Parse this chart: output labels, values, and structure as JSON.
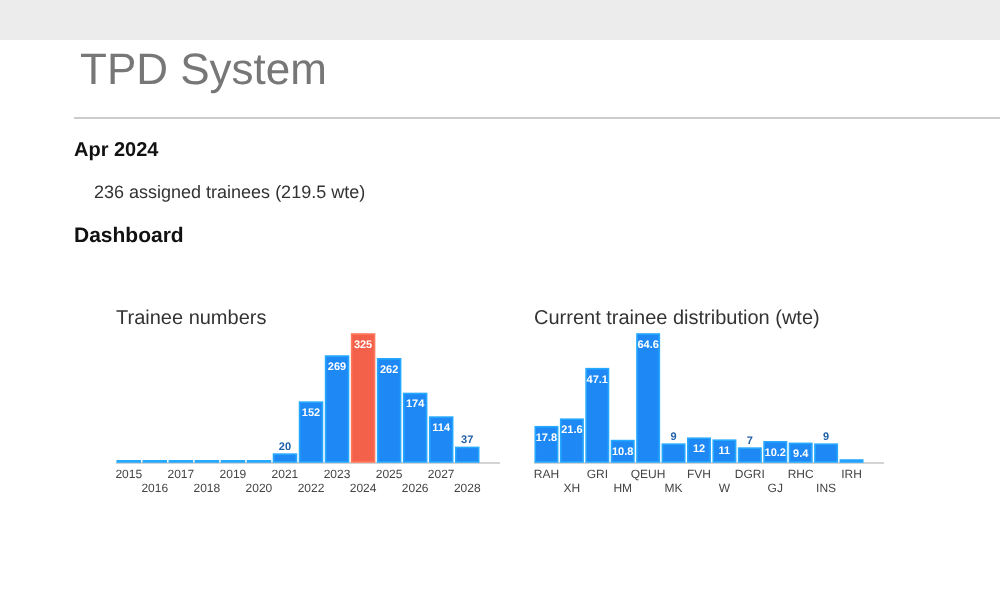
{
  "chart_data": [
    {
      "type": "other",
      "title": "TPD System",
      "subtitle": "Apr 2024",
      "annotations": [
        "236 assigned trainees (219.5 wte)",
        "Dashboard"
      ]
    },
    {
      "type": "bar",
      "title": "Trainee numbers",
      "categories": [
        "2015",
        "2016",
        "2017",
        "2018",
        "2019",
        "2020",
        "2021",
        "2022",
        "2023",
        "2024",
        "2025",
        "2026",
        "2027",
        "2028"
      ],
      "values": [
        3,
        3,
        3,
        3,
        3,
        3,
        20,
        152,
        269,
        325,
        262,
        174,
        114,
        37
      ],
      "value_labels": [
        null,
        null,
        null,
        null,
        null,
        null,
        "20",
        "152",
        "269",
        "325",
        "262",
        "174",
        "114",
        "37"
      ],
      "colors": [
        "#1e88f5",
        "#1e88f5",
        "#1e88f5",
        "#1e88f5",
        "#1e88f5",
        "#1e88f5",
        "#1e88f5",
        "#1e88f5",
        "#1e88f5",
        "#f4614a",
        "#1e88f5",
        "#1e88f5",
        "#1e88f5",
        "#1e88f5"
      ]
    },
    {
      "type": "bar",
      "title": "Current trainee distribution (wte)",
      "categories": [
        "RAH",
        "XH",
        "GRI",
        "HM",
        "QEUH",
        "MK",
        "FVH",
        "W",
        "DGRI",
        "GJ",
        "RHC",
        "INS",
        "IRH"
      ],
      "values": [
        17.8,
        21.6,
        47.1,
        10.8,
        64.6,
        9,
        12,
        11,
        7,
        10.2,
        9.4,
        9,
        1
      ],
      "value_labels": [
        "17.8",
        "21.6",
        "47.1",
        "10.8",
        "64.6",
        "9",
        "12",
        "11",
        "7",
        "10.2",
        "9.4",
        "9",
        null
      ],
      "color": "#1e88f5"
    }
  ]
}
